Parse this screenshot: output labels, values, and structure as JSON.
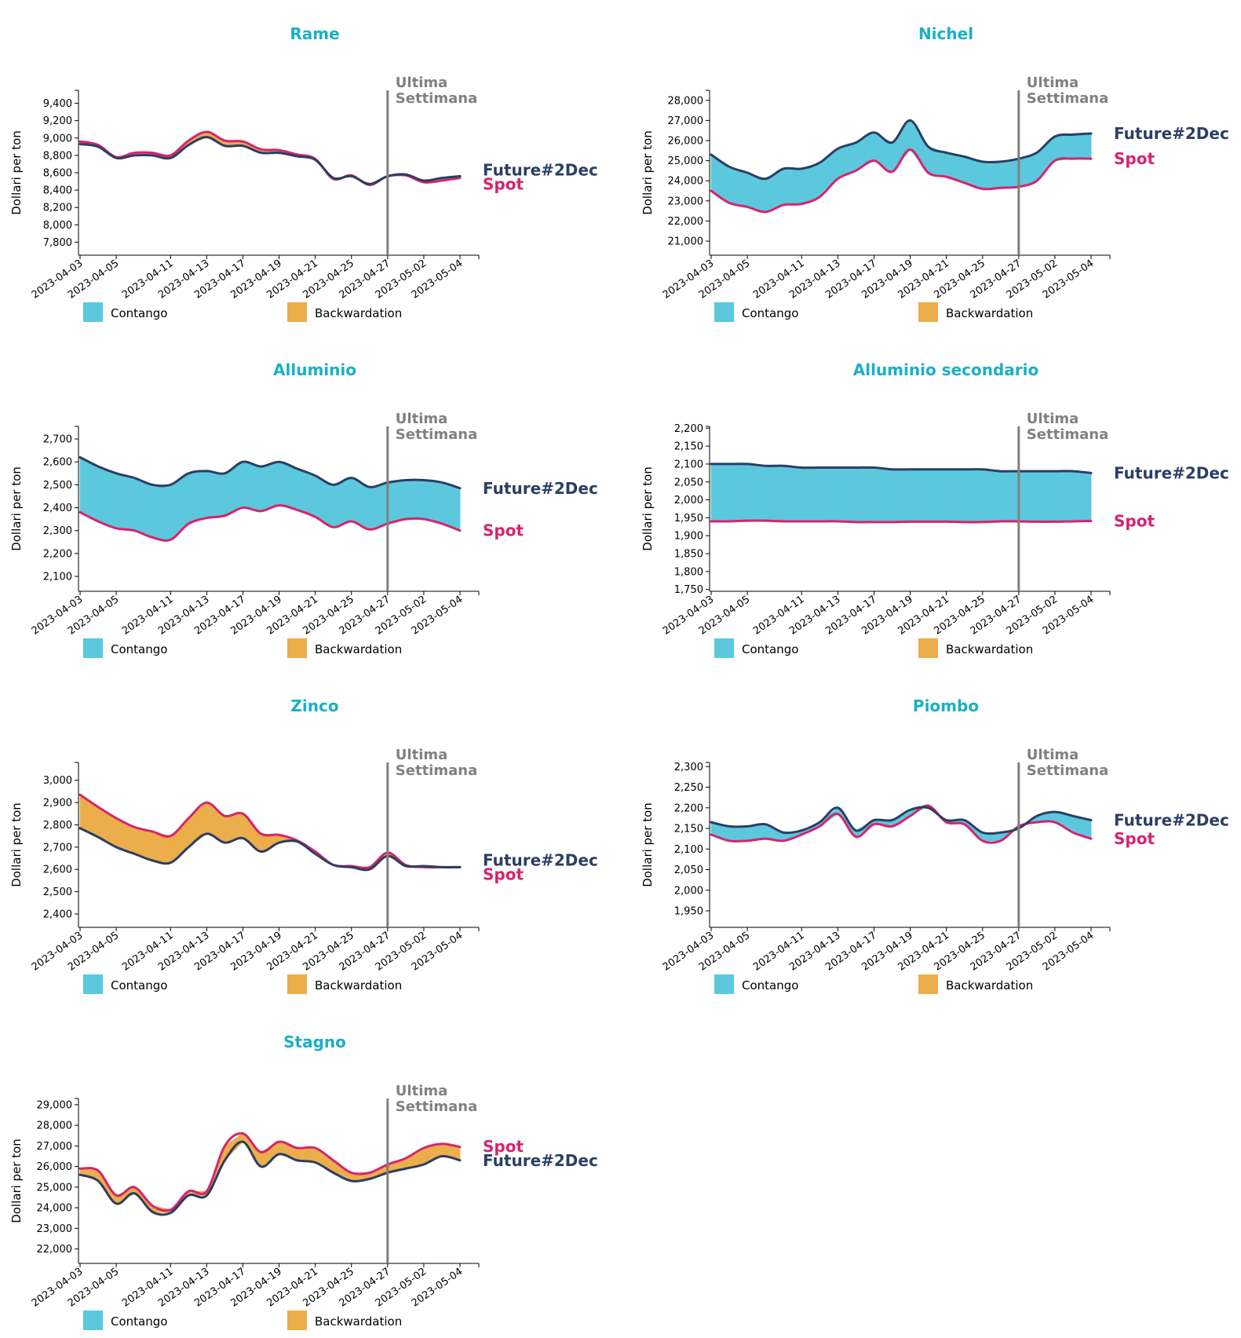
{
  "colors": {
    "title": "#1ab0c8",
    "future": "#2c3e63",
    "spot": "#d6246e",
    "contango": "#5bc8de",
    "backwardation": "#ecad4b",
    "marker": "#808080"
  },
  "legend": {
    "contango": "Contango",
    "backwardation": "Backwardation"
  },
  "marker": {
    "line1": "Ultima",
    "line2": "Settimana",
    "date": "2023-04-27"
  },
  "series_labels": {
    "future": "Future#2Dec",
    "spot": "Spot"
  },
  "ylabel": "Dollari per ton",
  "dates": [
    "2023-04-03",
    "2023-04-04",
    "2023-04-05",
    "2023-04-06",
    "2023-04-10",
    "2023-04-11",
    "2023-04-12",
    "2023-04-13",
    "2023-04-14",
    "2023-04-17",
    "2023-04-18",
    "2023-04-19",
    "2023-04-20",
    "2023-04-21",
    "2023-04-24",
    "2023-04-25",
    "2023-04-26",
    "2023-04-27",
    "2023-04-28",
    "2023-05-02",
    "2023-05-03",
    "2023-05-04"
  ],
  "xticks": [
    "2023-04-03",
    "2023-04-05",
    "2023-04-11",
    "2023-04-13",
    "2023-04-17",
    "2023-04-19",
    "2023-04-21",
    "2023-04-25",
    "2023-04-27",
    "2023-05-02",
    "2023-05-04"
  ],
  "chart_data": [
    {
      "type": "area",
      "title": "Rame",
      "ylabel": "Dollari per ton",
      "ylim": [
        7650,
        9550
      ],
      "yticks": [
        7800,
        8000,
        8200,
        8400,
        8600,
        8800,
        9000,
        9200,
        9400
      ],
      "series": [
        {
          "name": "Future#2Dec",
          "values": [
            8930,
            8900,
            8770,
            8800,
            8800,
            8770,
            8920,
            9010,
            8910,
            8910,
            8830,
            8830,
            8790,
            8750,
            8540,
            8560,
            8470,
            8560,
            8580,
            8510,
            8540,
            8560
          ]
        },
        {
          "name": "Spot",
          "values": [
            8960,
            8920,
            8780,
            8830,
            8830,
            8800,
            8970,
            9070,
            8970,
            8960,
            8870,
            8860,
            8810,
            8760,
            8530,
            8570,
            8460,
            8560,
            8570,
            8490,
            8510,
            8540
          ]
        }
      ]
    },
    {
      "type": "area",
      "title": "Nichel",
      "ylabel": "Dollari per ton",
      "ylim": [
        20300,
        28500
      ],
      "yticks": [
        21000,
        22000,
        23000,
        24000,
        25000,
        26000,
        27000,
        28000
      ],
      "series": [
        {
          "name": "Future#2Dec",
          "values": [
            25300,
            24700,
            24400,
            24100,
            24600,
            24600,
            24900,
            25600,
            25900,
            26400,
            25900,
            27000,
            25700,
            25400,
            25200,
            24950,
            24950,
            25100,
            25400,
            26200,
            26300,
            26350
          ]
        },
        {
          "name": "Spot",
          "values": [
            23500,
            22900,
            22700,
            22450,
            22800,
            22850,
            23200,
            24100,
            24500,
            25000,
            24450,
            25550,
            24400,
            24200,
            23900,
            23600,
            23650,
            23700,
            24000,
            25000,
            25100,
            25100
          ]
        }
      ]
    },
    {
      "type": "area",
      "title": "Alluminio",
      "ylabel": "Dollari per ton",
      "ylim": [
        2035,
        2755
      ],
      "yticks": [
        2100,
        2200,
        2300,
        2400,
        2500,
        2600,
        2700
      ],
      "series": [
        {
          "name": "Future#2Dec",
          "values": [
            2620,
            2580,
            2550,
            2530,
            2500,
            2500,
            2550,
            2560,
            2550,
            2600,
            2580,
            2600,
            2570,
            2540,
            2500,
            2530,
            2490,
            2510,
            2520,
            2520,
            2510,
            2485
          ]
        },
        {
          "name": "Spot",
          "values": [
            2380,
            2340,
            2310,
            2300,
            2270,
            2260,
            2330,
            2355,
            2365,
            2400,
            2385,
            2410,
            2390,
            2360,
            2315,
            2340,
            2305,
            2330,
            2350,
            2350,
            2330,
            2300
          ]
        }
      ]
    },
    {
      "type": "area",
      "title": "Alluminio secondario",
      "ylabel": "Dollari per ton",
      "ylim": [
        1745,
        2205
      ],
      "yticks": [
        1750,
        1800,
        1850,
        1900,
        1950,
        2000,
        2050,
        2100,
        2150,
        2200
      ],
      "series": [
        {
          "name": "Future#2Dec",
          "values": [
            2100,
            2100,
            2100,
            2095,
            2095,
            2090,
            2090,
            2090,
            2090,
            2090,
            2085,
            2085,
            2085,
            2085,
            2085,
            2085,
            2080,
            2080,
            2080,
            2080,
            2080,
            2075
          ]
        },
        {
          "name": "Spot",
          "values": [
            1940,
            1940,
            1942,
            1942,
            1940,
            1940,
            1940,
            1940,
            1938,
            1938,
            1938,
            1939,
            1939,
            1939,
            1938,
            1938,
            1940,
            1940,
            1939,
            1939,
            1940,
            1941
          ]
        }
      ]
    },
    {
      "type": "area",
      "title": "Zinco",
      "ylabel": "Dollari per ton",
      "ylim": [
        2340,
        3080
      ],
      "yticks": [
        2400,
        2500,
        2600,
        2700,
        2800,
        2900,
        3000
      ],
      "series": [
        {
          "name": "Future#2Dec",
          "values": [
            2785,
            2745,
            2700,
            2670,
            2640,
            2630,
            2700,
            2760,
            2720,
            2740,
            2680,
            2720,
            2725,
            2670,
            2620,
            2610,
            2600,
            2660,
            2615,
            2615,
            2610,
            2610
          ]
        },
        {
          "name": "Spot",
          "values": [
            2935,
            2880,
            2830,
            2790,
            2770,
            2750,
            2830,
            2900,
            2840,
            2850,
            2760,
            2755,
            2730,
            2680,
            2620,
            2615,
            2610,
            2675,
            2620,
            2610,
            2610,
            2610
          ]
        }
      ]
    },
    {
      "type": "area",
      "title": "Piombo",
      "ylabel": "Dollari per ton",
      "ylim": [
        1910,
        2310
      ],
      "yticks": [
        1950,
        2000,
        2050,
        2100,
        2150,
        2200,
        2250,
        2300
      ],
      "series": [
        {
          "name": "Future#2Dec",
          "values": [
            2165,
            2155,
            2155,
            2160,
            2140,
            2145,
            2165,
            2200,
            2145,
            2170,
            2170,
            2195,
            2200,
            2170,
            2170,
            2140,
            2140,
            2150,
            2180,
            2190,
            2180,
            2170
          ]
        },
        {
          "name": "Spot",
          "values": [
            2135,
            2120,
            2120,
            2125,
            2120,
            2135,
            2155,
            2185,
            2130,
            2160,
            2155,
            2180,
            2205,
            2165,
            2160,
            2120,
            2120,
            2155,
            2165,
            2165,
            2140,
            2125
          ]
        }
      ]
    },
    {
      "type": "area",
      "title": "Stagno",
      "ylabel": "Dollari per ton",
      "ylim": [
        21300,
        29300
      ],
      "yticks": [
        22000,
        23000,
        24000,
        25000,
        26000,
        27000,
        28000,
        29000
      ],
      "series": [
        {
          "name": "Future#2Dec",
          "values": [
            25600,
            25300,
            24200,
            24700,
            23800,
            23750,
            24600,
            24600,
            26300,
            27200,
            26000,
            26600,
            26300,
            26200,
            25700,
            25300,
            25400,
            25700,
            25900,
            26100,
            26500,
            26300
          ]
        },
        {
          "name": "Spot",
          "values": [
            25900,
            25800,
            24600,
            25000,
            24100,
            23900,
            24800,
            24800,
            27000,
            27600,
            26700,
            27200,
            26900,
            26900,
            26300,
            25700,
            25700,
            26100,
            26400,
            26900,
            27100,
            26950
          ]
        }
      ]
    }
  ]
}
